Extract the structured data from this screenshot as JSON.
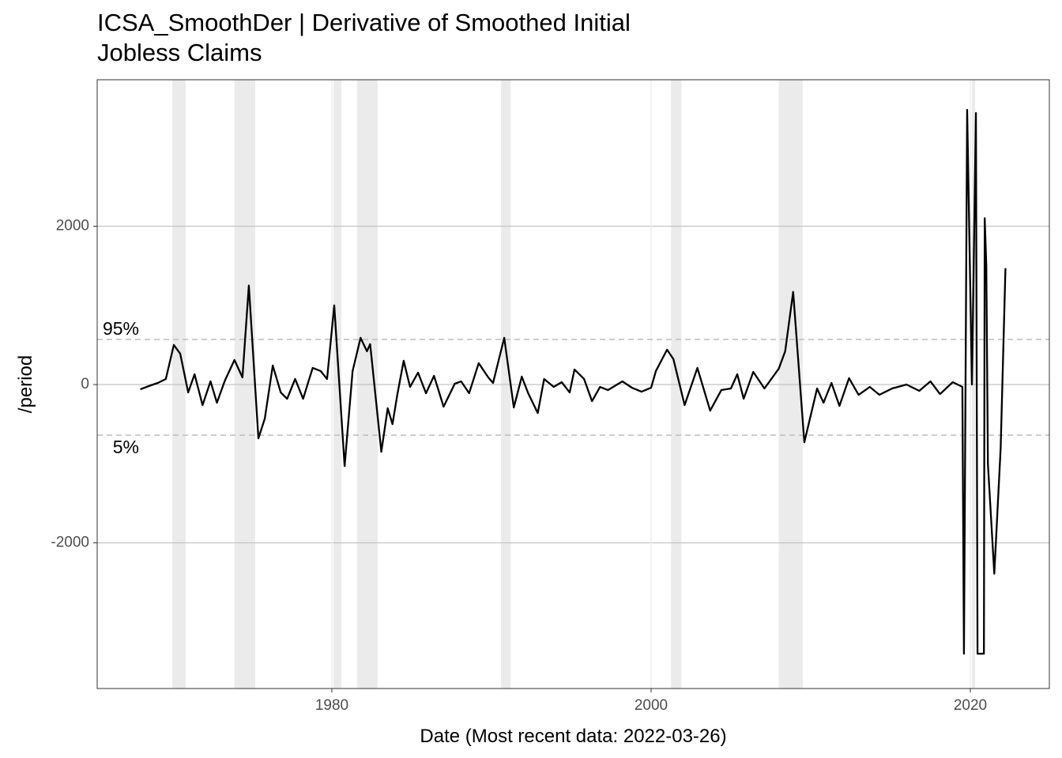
{
  "chart_data": {
    "type": "line",
    "title": "ICSA_SmoothDer | Derivative of Smoothed Initial Jobless Claims",
    "x_label": "Date (Most recent data: 2022-03-26)",
    "y_label": "/period",
    "xlim": [
      1965.3,
      2024.95
    ],
    "ylim": [
      -3840,
      3850
    ],
    "xticks": [
      1980,
      2000,
      2020
    ],
    "yticks": [
      -2000,
      0,
      2000
    ],
    "grid": true,
    "shaded_periods": [
      [
        1970.0,
        1970.84
      ],
      [
        1973.9,
        1975.2
      ],
      [
        1980.1,
        1980.6
      ],
      [
        1981.58,
        1982.87
      ],
      [
        1990.6,
        1991.2
      ],
      [
        2001.25,
        2001.9
      ],
      [
        2008.0,
        2009.5
      ],
      [
        2020.1,
        2020.3
      ]
    ],
    "hlines": [
      {
        "value": 570,
        "label": "95%"
      },
      {
        "value": -640,
        "label": "5%"
      }
    ],
    "series": [
      {
        "name": "ICSA_SmoothDer",
        "color": "#000000",
        "x": [
          1968.0,
          1968.66,
          1969.1,
          1969.6,
          1970.1,
          1970.5,
          1971.0,
          1971.4,
          1971.9,
          1972.4,
          1972.8,
          1973.3,
          1973.9,
          1974.4,
          1974.8,
          1975.4,
          1975.8,
          1976.3,
          1976.8,
          1977.2,
          1977.7,
          1978.2,
          1978.8,
          1979.3,
          1979.7,
          1980.15,
          1980.8,
          1981.3,
          1981.8,
          1982.2,
          1982.4,
          1983.1,
          1983.5,
          1983.8,
          1984.1,
          1984.5,
          1984.9,
          1985.4,
          1985.9,
          1986.4,
          1987.0,
          1987.7,
          1988.1,
          1988.6,
          1989.2,
          1989.8,
          1990.1,
          1990.8,
          1991.4,
          1991.9,
          1992.3,
          1992.9,
          1993.3,
          1993.9,
          1994.4,
          1994.9,
          1995.2,
          1995.8,
          1996.3,
          1996.8,
          1997.3,
          1998.2,
          1998.8,
          1999.4,
          2000.0,
          2000.3,
          2001.0,
          2001.4,
          2002.1,
          2002.9,
          2003.7,
          2004.4,
          2005.0,
          2005.4,
          2005.8,
          2006.4,
          2007.1,
          2008.0,
          2008.4,
          2008.9,
          2009.6,
          2010.4,
          2010.8,
          2011.3,
          2011.8,
          2012.4,
          2013.0,
          2013.7,
          2014.3,
          2015.1,
          2016.0,
          2016.8,
          2017.5,
          2018.1,
          2018.9,
          2019.5,
          2019.6,
          2019.8,
          2020.1,
          2020.35,
          2020.45,
          2020.85,
          2020.9,
          2021.0,
          2021.1,
          2021.5,
          2021.9,
          2022.2
        ],
        "values": [
          -60,
          -10,
          20,
          70,
          500,
          390,
          -100,
          130,
          -260,
          40,
          -230,
          50,
          310,
          90,
          1250,
          -680,
          -430,
          240,
          -100,
          -180,
          70,
          -180,
          210,
          170,
          70,
          1000,
          -1030,
          170,
          590,
          420,
          510,
          -850,
          -300,
          -500,
          -130,
          300,
          -30,
          150,
          -110,
          110,
          -280,
          10,
          40,
          -110,
          270,
          90,
          20,
          590,
          -290,
          100,
          -110,
          -360,
          70,
          -30,
          30,
          -100,
          190,
          70,
          -210,
          -30,
          -70,
          40,
          -40,
          -90,
          -40,
          170,
          440,
          320,
          -260,
          210,
          -330,
          -70,
          -50,
          130,
          -180,
          160,
          -50,
          200,
          420,
          1170,
          -730,
          -50,
          -230,
          20,
          -270,
          80,
          -130,
          -30,
          -130,
          -50,
          0,
          -80,
          40,
          -120,
          30,
          -30,
          -3400,
          3470,
          0,
          3430,
          -3400,
          -3400,
          2100,
          1500,
          -1000,
          -2390,
          -800,
          1470
        ]
      }
    ]
  }
}
